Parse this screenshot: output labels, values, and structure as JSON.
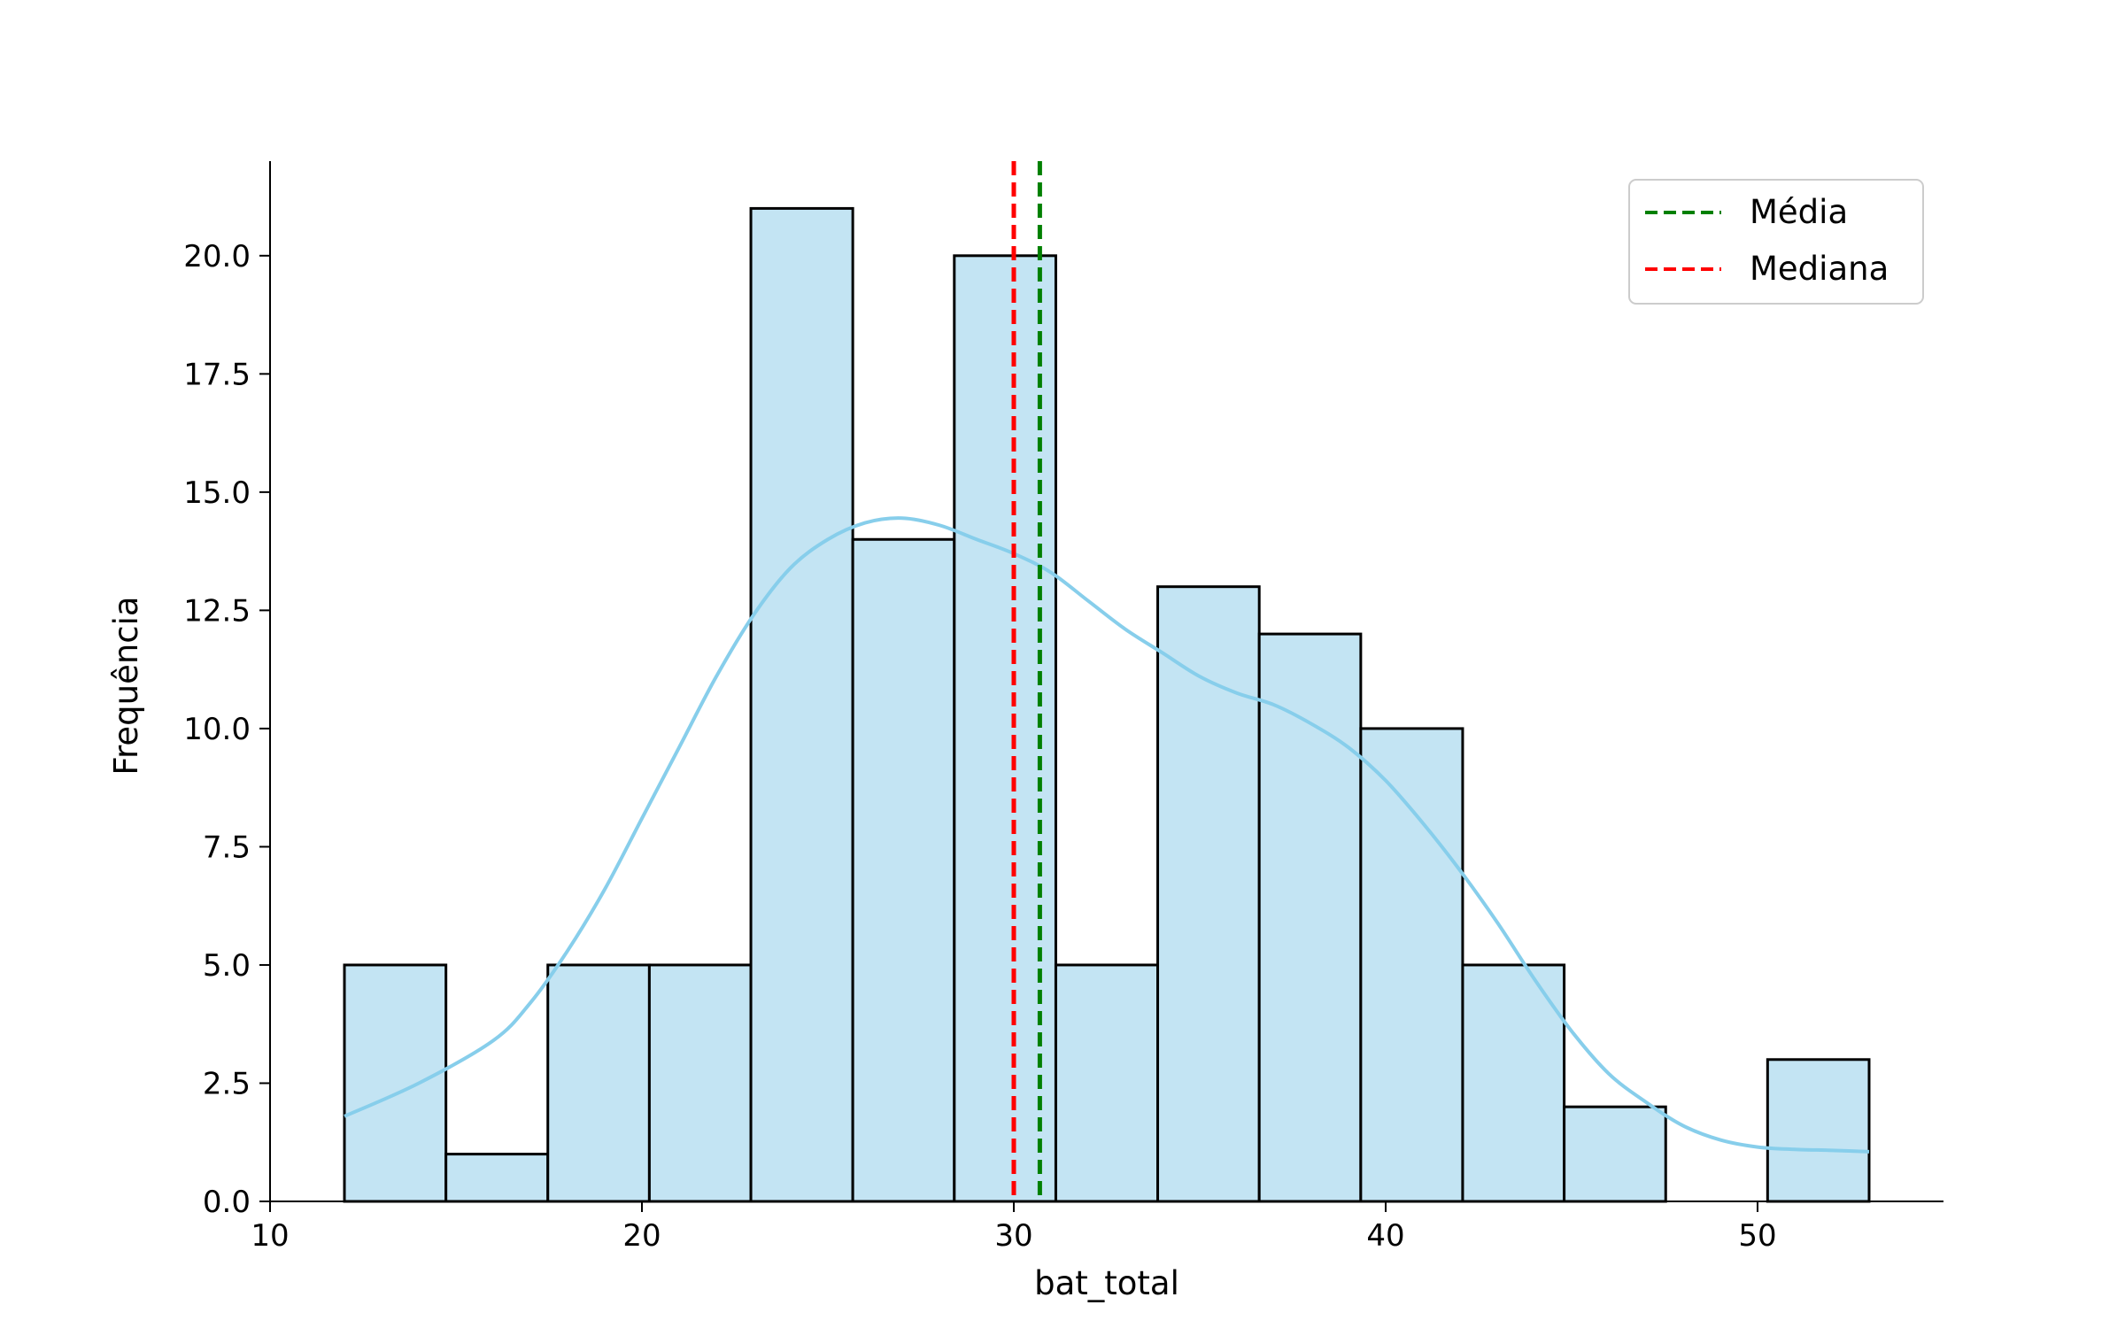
{
  "chart_data": {
    "type": "bar",
    "subtype": "histogram-with-kde",
    "title": "",
    "xlabel": "bat_total",
    "ylabel": "Frequência",
    "xlim": [
      10,
      55
    ],
    "ylim": [
      0,
      22
    ],
    "x_ticks": [
      10,
      20,
      30,
      40,
      50
    ],
    "x_tick_labels": [
      "10",
      "20",
      "30",
      "40",
      "50"
    ],
    "y_ticks": [
      0,
      2.5,
      5,
      7.5,
      10,
      12.5,
      15,
      17.5,
      20
    ],
    "y_tick_labels": [
      "0.0",
      "2.5",
      "5.0",
      "7.5",
      "10.0",
      "12.5",
      "15.0",
      "17.5",
      "20.0"
    ],
    "bin_edges": [
      12.0,
      14.73,
      17.47,
      20.2,
      22.93,
      25.67,
      28.4,
      31.13,
      33.87,
      36.6,
      39.33,
      42.07,
      44.8,
      47.53,
      50.27,
      53.0
    ],
    "counts": [
      5,
      1,
      5,
      5,
      21,
      14,
      20,
      5,
      13,
      12,
      10,
      5,
      2,
      0,
      3
    ],
    "kde": {
      "x": [
        12,
        14,
        16,
        17,
        18,
        19,
        20,
        21,
        22,
        23,
        24,
        25,
        26,
        27,
        28,
        29,
        30,
        31,
        32,
        33,
        34,
        35,
        36,
        37,
        38,
        39,
        40,
        41,
        42,
        43,
        44,
        45,
        46,
        47,
        48,
        49,
        50,
        51,
        52,
        53
      ],
      "y": [
        1.8,
        2.5,
        3.4,
        4.2,
        5.3,
        6.6,
        8.1,
        9.6,
        11.1,
        12.4,
        13.4,
        14.0,
        14.35,
        14.45,
        14.3,
        14.0,
        13.7,
        13.3,
        12.7,
        12.1,
        11.6,
        11.1,
        10.75,
        10.5,
        10.1,
        9.6,
        8.9,
        8.0,
        7.0,
        5.9,
        4.7,
        3.6,
        2.7,
        2.1,
        1.6,
        1.3,
        1.15,
        1.1,
        1.08,
        1.05
      ]
    },
    "vlines": [
      {
        "name": "Média",
        "x": 30.7,
        "color": "#008000",
        "style": "dashed"
      },
      {
        "name": "Mediana",
        "x": 30.0,
        "color": "#ff0000",
        "style": "dashed"
      }
    ],
    "legend": {
      "placement": "top-right",
      "entries": [
        "Média",
        "Mediana"
      ]
    },
    "grid": false,
    "colors": {
      "bar_fill": "#c3e4f3",
      "bar_edge": "#000000",
      "kde": "#87ceeb",
      "mean": "#008000",
      "median": "#ff0000"
    }
  }
}
